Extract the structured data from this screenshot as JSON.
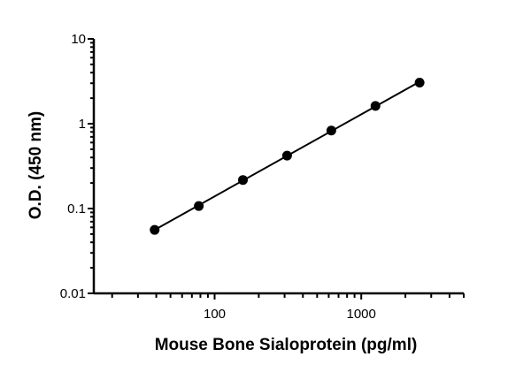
{
  "chart_data": {
    "type": "scatter",
    "title": "",
    "xlabel": "Mouse Bone Sialoprotein (pg/ml)",
    "ylabel": "O.D. (450 nm)",
    "xscale": "log",
    "yscale": "log",
    "xlim": [
      15,
      5000
    ],
    "ylim": [
      0.01,
      10
    ],
    "x_ticks": [
      {
        "value": 100,
        "label": "100"
      },
      {
        "value": 1000,
        "label": "1000"
      }
    ],
    "y_ticks": [
      {
        "value": 10,
        "label": "10"
      },
      {
        "value": 1,
        "label": "1"
      },
      {
        "value": 0.1,
        "label": "0.1"
      },
      {
        "value": 0.01,
        "label": "0.01"
      }
    ],
    "grid": false,
    "fit_line": true,
    "marker_color": "#000000",
    "series": [
      {
        "x": [
          39,
          78,
          156,
          312,
          625,
          1250,
          2500
        ],
        "y": [
          0.056,
          0.107,
          0.217,
          0.42,
          0.83,
          1.62,
          3.05
        ]
      }
    ]
  }
}
